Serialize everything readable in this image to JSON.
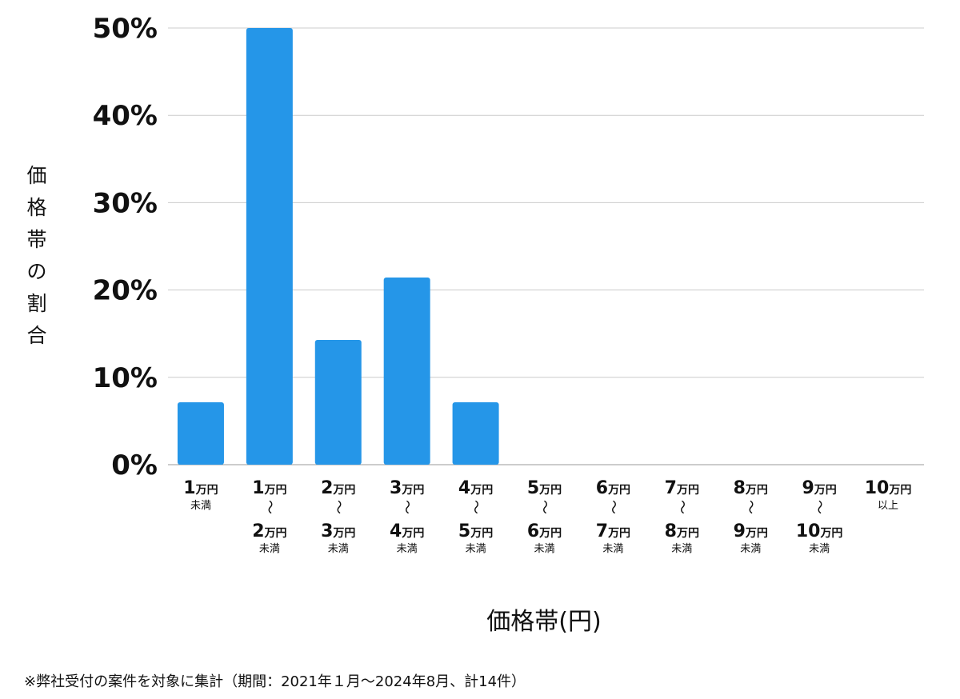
{
  "chart_data": {
    "type": "bar",
    "ylabel": "価格帯の割合",
    "xlabel": "価格帯(円)",
    "ylim": [
      0,
      50
    ],
    "yticks": [
      "0%",
      "10%",
      "20%",
      "30%",
      "40%",
      "50%"
    ],
    "grid": true,
    "bar_color": "#2596e8",
    "categories": [
      "1万円未満",
      "1万円〜2万円未満",
      "2万円〜3万円未満",
      "3万円〜4万円未満",
      "4万円〜5万円未満",
      "5万円〜6万円未満",
      "6万円〜7万円未満",
      "7万円〜8万円未満",
      "8万円〜9万円未満",
      "9万円〜10万円未満",
      "10万円以上"
    ],
    "tick_labels": [
      {
        "top": "1",
        "note": "未満"
      },
      {
        "top": "1",
        "bottom": "2",
        "note": "未満"
      },
      {
        "top": "2",
        "bottom": "3",
        "note": "未満"
      },
      {
        "top": "3",
        "bottom": "4",
        "note": "未満"
      },
      {
        "top": "4",
        "bottom": "5",
        "note": "未満"
      },
      {
        "top": "5",
        "bottom": "6",
        "note": "未満"
      },
      {
        "top": "6",
        "bottom": "7",
        "note": "未満"
      },
      {
        "top": "7",
        "bottom": "8",
        "note": "未満"
      },
      {
        "top": "8",
        "bottom": "9",
        "note": "未満"
      },
      {
        "top": "9",
        "bottom": "10",
        "note": "未満"
      },
      {
        "top": "10",
        "note": "以上"
      }
    ],
    "unit": "万円",
    "range_sep": "〜",
    "values": [
      7.14,
      50,
      14.29,
      21.43,
      7.14,
      0,
      0,
      0,
      0,
      0,
      0
    ]
  },
  "footnote": "※弊社受付の案件を対象に集計（期間：2021年１月〜2024年8月、計14件）"
}
